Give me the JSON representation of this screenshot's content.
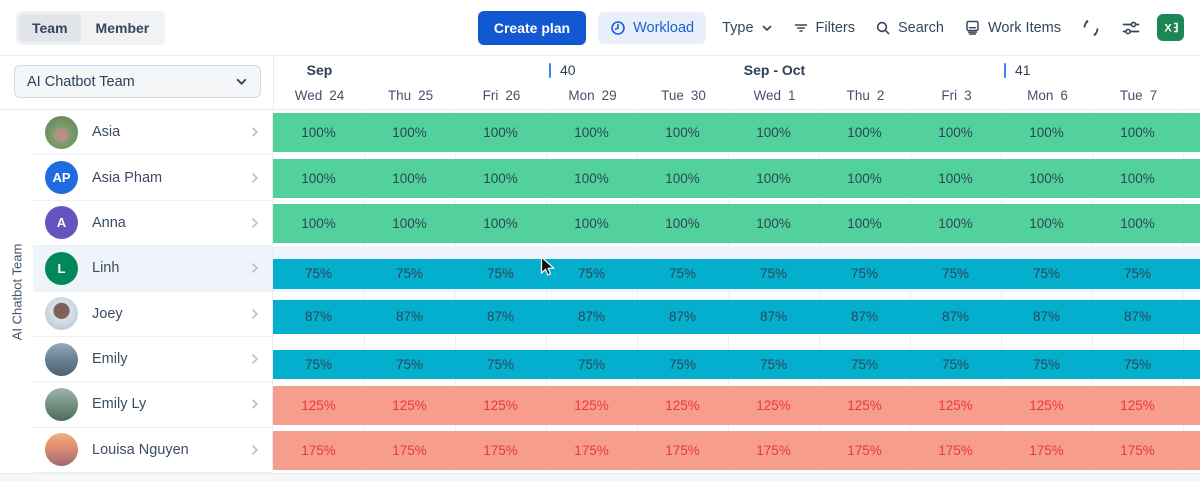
{
  "toolbar": {
    "tabs": [
      {
        "label": "Team",
        "active": true
      },
      {
        "label": "Member",
        "active": false
      }
    ],
    "create_plan_label": "Create plan",
    "workload_label": "Workload",
    "type_label": "Type",
    "filters_label": "Filters",
    "search_label": "Search",
    "work_items_label": "Work Items",
    "icons": {
      "workload": "clock-icon",
      "type": "chevron-down-icon",
      "filters": "filter-icon",
      "search": "search-icon",
      "work_items": "journal-icon",
      "refresh": "refresh-icon",
      "settings": "sliders-icon",
      "export": "excel-icon"
    }
  },
  "sidebar": {
    "team_selector_value": "AI Chatbot Team",
    "vertical_label": "AI Chatbot Team",
    "members": [
      {
        "name": "Asia",
        "avatar": {
          "type": "photo",
          "style": "photo-asia"
        }
      },
      {
        "name": "Asia Pham",
        "avatar": {
          "type": "initials",
          "text": "AP",
          "color": "#1f6be0"
        }
      },
      {
        "name": "Anna",
        "avatar": {
          "type": "initials",
          "text": "A",
          "color": "#6554c0"
        }
      },
      {
        "name": "Linh",
        "avatar": {
          "type": "initials",
          "text": "L",
          "color": "#00875a"
        },
        "highlighted": true
      },
      {
        "name": "Joey",
        "avatar": {
          "type": "photo",
          "style": "photo-joey"
        }
      },
      {
        "name": "Emily",
        "avatar": {
          "type": "photo",
          "style": "photo-emily"
        }
      },
      {
        "name": "Emily Ly",
        "avatar": {
          "type": "photo",
          "style": "photo-emilyly"
        }
      },
      {
        "name": "Louisa Nguyen",
        "avatar": {
          "type": "photo",
          "style": "photo-louisa"
        }
      }
    ]
  },
  "timeline": {
    "top_labels": [
      {
        "type": "month",
        "text": "Sep",
        "col": 0
      },
      {
        "type": "week",
        "text": "40",
        "col": 3
      },
      {
        "type": "month",
        "text": "Sep - Oct",
        "col": 5
      },
      {
        "type": "week",
        "text": "41",
        "col": 8
      }
    ],
    "days": [
      {
        "weekday": "Wed",
        "day": "24"
      },
      {
        "weekday": "Thu",
        "day": "25"
      },
      {
        "weekday": "Fri",
        "day": "26"
      },
      {
        "weekday": "Mon",
        "day": "29"
      },
      {
        "weekday": "Tue",
        "day": "30"
      },
      {
        "weekday": "Wed",
        "day": "1"
      },
      {
        "weekday": "Thu",
        "day": "2"
      },
      {
        "weekday": "Fri",
        "day": "3"
      },
      {
        "weekday": "Mon",
        "day": "6"
      },
      {
        "weekday": "Tue",
        "day": "7"
      }
    ]
  },
  "grid": {
    "rows": [
      {
        "member": "Asia",
        "pct": 100,
        "status": "full",
        "highlighted": false,
        "values": [
          "100%",
          "100%",
          "100%",
          "100%",
          "100%",
          "100%",
          "100%",
          "100%",
          "100%",
          "100%"
        ]
      },
      {
        "member": "Asia Pham",
        "pct": 100,
        "status": "full",
        "highlighted": false,
        "values": [
          "100%",
          "100%",
          "100%",
          "100%",
          "100%",
          "100%",
          "100%",
          "100%",
          "100%",
          "100%"
        ]
      },
      {
        "member": "Anna",
        "pct": 100,
        "status": "full",
        "highlighted": false,
        "values": [
          "100%",
          "100%",
          "100%",
          "100%",
          "100%",
          "100%",
          "100%",
          "100%",
          "100%",
          "100%"
        ]
      },
      {
        "member": "Linh",
        "pct": 75,
        "status": "under",
        "highlighted": true,
        "values": [
          "75%",
          "75%",
          "75%",
          "75%",
          "75%",
          "75%",
          "75%",
          "75%",
          "75%",
          "75%"
        ]
      },
      {
        "member": "Joey",
        "pct": 87,
        "status": "under",
        "highlighted": false,
        "values": [
          "87%",
          "87%",
          "87%",
          "87%",
          "87%",
          "87%",
          "87%",
          "87%",
          "87%",
          "87%"
        ]
      },
      {
        "member": "Emily",
        "pct": 75,
        "status": "under",
        "highlighted": false,
        "values": [
          "75%",
          "75%",
          "75%",
          "75%",
          "75%",
          "75%",
          "75%",
          "75%",
          "75%",
          "75%"
        ]
      },
      {
        "member": "Emily Ly",
        "pct": 125,
        "status": "over",
        "highlighted": false,
        "values": [
          "125%",
          "125%",
          "125%",
          "125%",
          "125%",
          "125%",
          "125%",
          "125%",
          "125%",
          "125%"
        ]
      },
      {
        "member": "Louisa Nguyen",
        "pct": 175,
        "status": "over",
        "highlighted": false,
        "values": [
          "175%",
          "175%",
          "175%",
          "175%",
          "175%",
          "175%",
          "175%",
          "175%",
          "175%",
          "175%"
        ]
      }
    ]
  },
  "colors": {
    "full": "#52d19c",
    "under": "#04aecd",
    "over": "#f69d8e",
    "over_text": "#e8393f",
    "band_text": "#2d4656",
    "accent_blue": "#1158d2",
    "week_marker": "#3e82f7",
    "excel_green": "#1a8754"
  }
}
